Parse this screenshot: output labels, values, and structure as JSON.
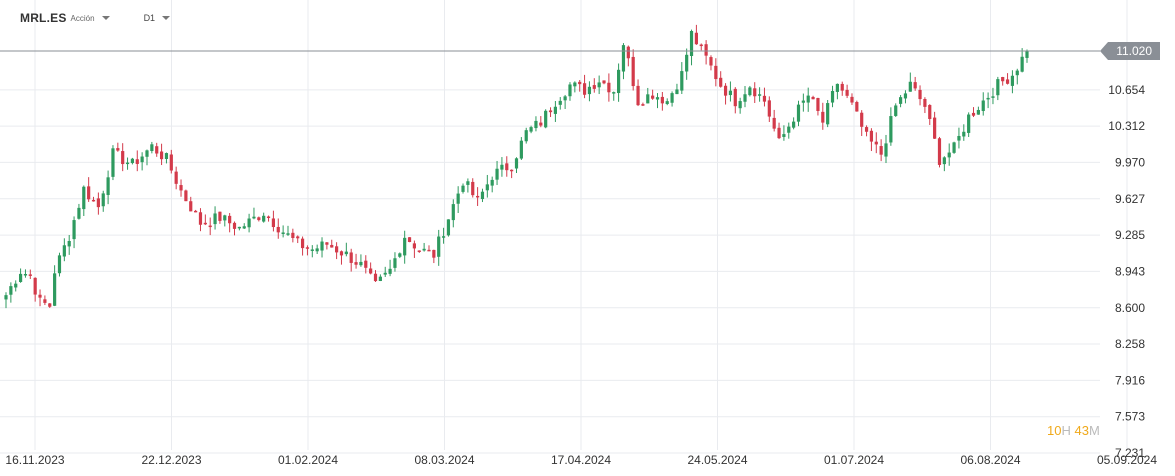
{
  "header": {
    "symbol": "MRL.ES",
    "type": "Acción",
    "timeframe": "D1"
  },
  "countdown": {
    "hours": "10",
    "hours_unit": "H",
    "minutes": "43",
    "minutes_unit": "M"
  },
  "colors": {
    "up": "#2e9a5f",
    "down": "#d33a4a",
    "grid": "#e9ebef",
    "price_line": "#8a8f96",
    "price_label_bg": "#8a8f96",
    "axis_text": "#333333"
  },
  "chart_data": {
    "type": "candlestick",
    "current_price": "11.020",
    "y_ticks": [
      "10.654",
      "10.312",
      "9.970",
      "9.627",
      "9.285",
      "8.943",
      "8.600",
      "8.258",
      "7.916",
      "7.573",
      "7.231"
    ],
    "x_ticks": [
      "16.11.2023",
      "22.12.2023",
      "01.02.2024",
      "08.03.2024",
      "17.04.2024",
      "24.05.2024",
      "01.07.2024",
      "06.08.2024",
      "05.09.2024"
    ],
    "ylim": [
      7.231,
      11.224
    ],
    "grid": true,
    "waypoints": [
      [
        0,
        8.72
      ],
      [
        3,
        8.95
      ],
      [
        5,
        8.9
      ],
      [
        7,
        8.65
      ],
      [
        9,
        8.62
      ],
      [
        10,
        8.95
      ],
      [
        13,
        9.28
      ],
      [
        16,
        9.72
      ],
      [
        19,
        9.55
      ],
      [
        22,
        10.05
      ],
      [
        26,
        9.95
      ],
      [
        30,
        10.12
      ],
      [
        33,
        10.0
      ],
      [
        36,
        9.7
      ],
      [
        40,
        9.4
      ],
      [
        44,
        9.45
      ],
      [
        48,
        9.35
      ],
      [
        53,
        9.5
      ],
      [
        57,
        9.32
      ],
      [
        60,
        9.2
      ],
      [
        63,
        9.15
      ],
      [
        66,
        9.2
      ],
      [
        70,
        9.1
      ],
      [
        73,
        9.0
      ],
      [
        76,
        8.8
      ],
      [
        79,
        8.95
      ],
      [
        82,
        9.28
      ],
      [
        85,
        9.15
      ],
      [
        88,
        9.1
      ],
      [
        91,
        9.45
      ],
      [
        94,
        9.8
      ],
      [
        97,
        9.6
      ],
      [
        100,
        9.85
      ],
      [
        104,
        9.95
      ],
      [
        107,
        10.25
      ],
      [
        110,
        10.35
      ],
      [
        113,
        10.55
      ],
      [
        116,
        10.7
      ],
      [
        119,
        10.65
      ],
      [
        122,
        10.75
      ],
      [
        125,
        10.65
      ],
      [
        127,
        11.1
      ],
      [
        130,
        10.55
      ],
      [
        133,
        10.62
      ],
      [
        136,
        10.55
      ],
      [
        139,
        10.8
      ],
      [
        141,
        11.18
      ],
      [
        144,
        10.95
      ],
      [
        147,
        10.7
      ],
      [
        150,
        10.55
      ],
      [
        153,
        10.7
      ],
      [
        156,
        10.55
      ],
      [
        159,
        10.15
      ],
      [
        162,
        10.4
      ],
      [
        165,
        10.6
      ],
      [
        168,
        10.35
      ],
      [
        171,
        10.72
      ],
      [
        174,
        10.5
      ],
      [
        177,
        10.2
      ],
      [
        180,
        10.05
      ],
      [
        183,
        10.5
      ],
      [
        186,
        10.7
      ],
      [
        189,
        10.5
      ],
      [
        192,
        10.0
      ],
      [
        195,
        10.1
      ],
      [
        198,
        10.4
      ],
      [
        201,
        10.55
      ],
      [
        204,
        10.7
      ],
      [
        207,
        10.8
      ],
      [
        210,
        11.02
      ]
    ]
  }
}
